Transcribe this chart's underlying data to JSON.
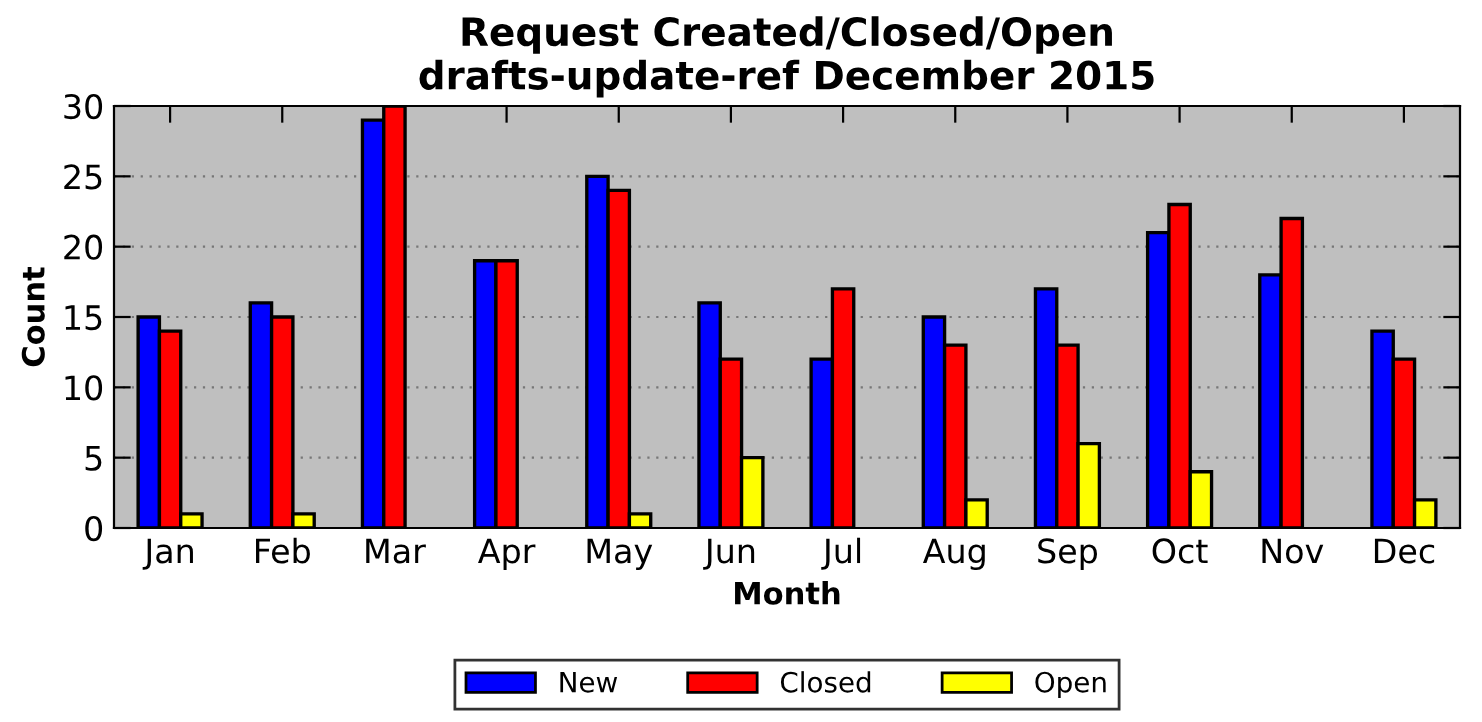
{
  "chart_data": {
    "type": "bar",
    "title": "Request Created/Closed/Open\ndrafts-update-ref December 2015",
    "xlabel": "Month",
    "ylabel": "Count",
    "categories": [
      "Jan",
      "Feb",
      "Mar",
      "Apr",
      "May",
      "Jun",
      "Jul",
      "Aug",
      "Sep",
      "Oct",
      "Nov",
      "Dec"
    ],
    "series": [
      {
        "name": "New",
        "color": "#0000ff",
        "values": [
          15,
          16,
          29,
          19,
          25,
          16,
          12,
          15,
          17,
          21,
          18,
          14
        ]
      },
      {
        "name": "Closed",
        "color": "#ff0000",
        "values": [
          14,
          15,
          30,
          19,
          24,
          12,
          17,
          13,
          13,
          23,
          22,
          12
        ]
      },
      {
        "name": "Open",
        "color": "#ffff00",
        "values": [
          1,
          1,
          0,
          0,
          1,
          5,
          0,
          2,
          6,
          4,
          0,
          2
        ]
      }
    ],
    "ylim": [
      0,
      30
    ],
    "yticks": [
      0,
      5,
      10,
      15,
      20,
      25,
      30
    ],
    "grid": "y",
    "legend": "bottom"
  }
}
